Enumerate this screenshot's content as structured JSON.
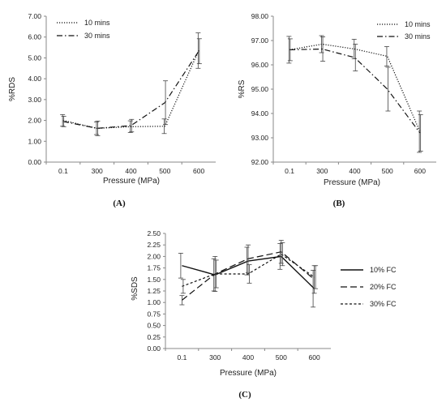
{
  "chart_data": [
    {
      "type": "line",
      "panel_label": "(A)",
      "xlabel": "Pressure (MPa)",
      "ylabel": "%RDS",
      "categories": [
        "0.1",
        "300",
        "400",
        "500",
        "600"
      ],
      "ylim": [
        0,
        7
      ],
      "yticks": [
        "0.00",
        "1.00",
        "2.00",
        "3.00",
        "4.00",
        "5.00",
        "6.00",
        "7.00"
      ],
      "legend_position": "top-left",
      "series": [
        {
          "name": "10 mins",
          "style": "dotted",
          "values": [
            2.0,
            1.62,
            1.7,
            1.72,
            5.35
          ],
          "errors": [
            0.28,
            0.3,
            0.28,
            0.35,
            0.85
          ]
        },
        {
          "name": "30 mins",
          "style": "dashdot",
          "values": [
            1.95,
            1.62,
            1.75,
            2.85,
            5.32
          ],
          "errors": [
            0.25,
            0.35,
            0.3,
            1.05,
            0.6
          ]
        }
      ]
    },
    {
      "type": "line",
      "panel_label": "(B)",
      "xlabel": "Pressure  (MPa)",
      "ylabel": "%RS",
      "categories": [
        "0.1",
        "300",
        "400",
        "500",
        "600"
      ],
      "ylim": [
        92,
        98
      ],
      "yticks": [
        "92.00",
        "93.00",
        "94.00",
        "95.00",
        "96.00",
        "97.00",
        "98.00"
      ],
      "legend_position": "top-right",
      "series": [
        {
          "name": "10 mins",
          "style": "dotted",
          "values": [
            96.62,
            96.85,
            96.65,
            96.35,
            93.25
          ],
          "errors": [
            0.55,
            0.35,
            0.4,
            0.4,
            0.85
          ]
        },
        {
          "name": "30 mins",
          "style": "dashdot",
          "values": [
            96.62,
            96.65,
            96.3,
            95.0,
            93.2
          ],
          "errors": [
            0.45,
            0.5,
            0.55,
            0.9,
            0.75
          ]
        }
      ]
    },
    {
      "type": "line",
      "panel_label": "(C)",
      "xlabel": "Pressure (MPa)",
      "ylabel": "%SDS",
      "categories": [
        "0.1",
        "300",
        "400",
        "500",
        "600"
      ],
      "ylim": [
        0,
        2.5
      ],
      "yticks": [
        "0.00",
        "0.25",
        "0.50",
        "0.75",
        "1.00",
        "1.25",
        "1.50",
        "1.75",
        "2.00",
        "2.25",
        "2.50"
      ],
      "legend_position": "right",
      "series": [
        {
          "name": "10% FC",
          "style": "solid",
          "values": [
            1.8,
            1.6,
            1.9,
            2.0,
            1.3
          ],
          "errors": [
            0.27,
            0.35,
            0.3,
            0.28,
            0.4
          ]
        },
        {
          "name": "20% FC",
          "style": "dashed",
          "values": [
            1.05,
            1.62,
            1.95,
            2.1,
            1.5
          ],
          "errors": [
            0.1,
            0.38,
            0.3,
            0.25,
            0.3
          ]
        },
        {
          "name": "30% FC",
          "style": "shortdash",
          "values": [
            1.35,
            1.62,
            1.62,
            2.05,
            1.55
          ],
          "errors": [
            0.15,
            0.3,
            0.2,
            0.25,
            0.25
          ]
        }
      ]
    }
  ]
}
